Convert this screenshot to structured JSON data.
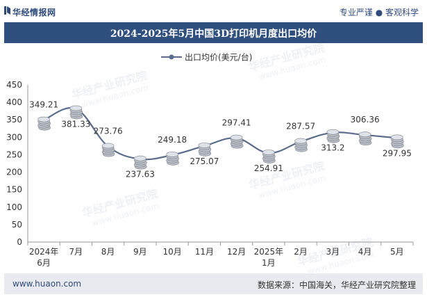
{
  "header": {
    "brand": "华经情报网",
    "tagline": "专业严谨 ● 客观科学"
  },
  "chart_data": {
    "type": "line",
    "title": "2024-2025年5月中国3D打印机月度出口均价",
    "categories": [
      "2024年\n6月",
      "7月",
      "8月",
      "9月",
      "10月",
      "11月",
      "12月",
      "2025年\n1月",
      "2月",
      "3月",
      "4月",
      "5月"
    ],
    "series": [
      {
        "name": "出口均价(美元/台)",
        "values": [
          349.21,
          381.33,
          273.76,
          237.63,
          249.18,
          275.07,
          297.41,
          254.91,
          287.57,
          313.2,
          306.36,
          297.95
        ]
      }
    ],
    "value_labels": [
      "349.21",
      "381.33",
      "273.76",
      "237.63",
      "249.18",
      "275.07",
      "297.41",
      "254.91",
      "287.57",
      "313.2",
      "306.36",
      "297.95"
    ],
    "label_above": [
      true,
      false,
      true,
      false,
      true,
      false,
      true,
      false,
      true,
      false,
      true,
      false
    ],
    "ylim": [
      0,
      450
    ],
    "yticks": [
      0,
      50,
      100,
      150,
      200,
      250,
      300,
      350,
      400,
      450
    ],
    "xlabel": "",
    "ylabel": "",
    "legend": "top-center",
    "line_color": "#5a6b8c",
    "watermarks": [
      "华经产业研究院",
      "www.huaon.com"
    ]
  },
  "footer": {
    "url": "www.huaon.com",
    "source": "数据来源：中国海关，华经产业研究院整理"
  }
}
